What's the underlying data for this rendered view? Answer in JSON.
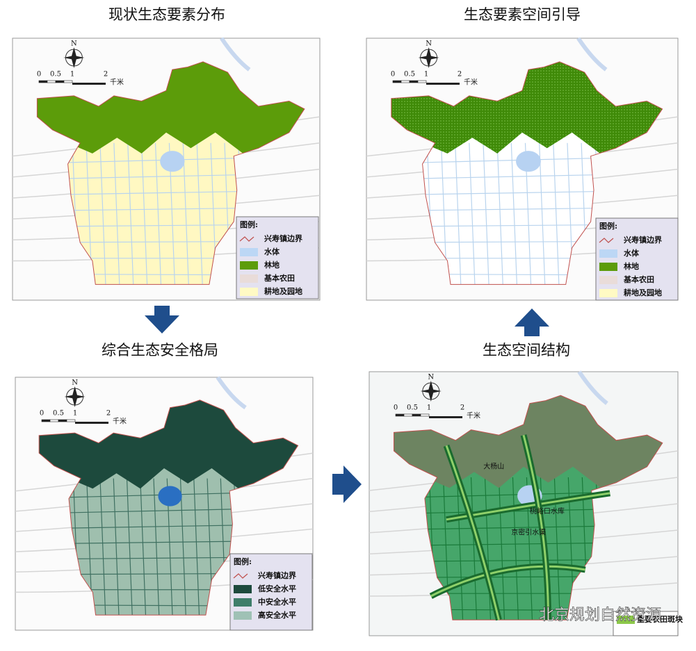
{
  "panels": [
    {
      "title": "现状生态要素分布",
      "north": "N",
      "scale": [
        "0",
        "0.5",
        "1",
        "2"
      ],
      "scale_unit": "千米",
      "legend": {
        "title": "图例:",
        "items": [
          "兴寿镇边界",
          "水体",
          "林地",
          "基本农田",
          "耕地及园地"
        ]
      }
    },
    {
      "title": "生态要素空间引导",
      "north": "N",
      "scale": [
        "0",
        "0.5",
        "1",
        "2"
      ],
      "scale_unit": "千米",
      "legend": {
        "title": "图例:",
        "items": [
          "兴寿镇边界",
          "水体",
          "林地",
          "基本农田",
          "耕地及园地"
        ]
      }
    },
    {
      "title": "综合生态安全格局",
      "north": "N",
      "scale": [
        "0",
        "0.5",
        "1",
        "2"
      ],
      "scale_unit": "千米",
      "legend": {
        "title": "图例:",
        "items": [
          "兴寿镇边界",
          "低安全水平",
          "中安全水平",
          "高安全水平"
        ]
      }
    },
    {
      "title": "生态空间结构",
      "north": "N",
      "scale": [
        "0",
        "0.5",
        "1",
        "2"
      ],
      "scale_unit": "千米",
      "legend": {
        "items": [
          "重要农田斑块"
        ]
      },
      "map_labels": [
        "大杨山",
        "桃峪口水库",
        "京密引水渠"
      ]
    }
  ],
  "watermark": "北京规划自然资源"
}
